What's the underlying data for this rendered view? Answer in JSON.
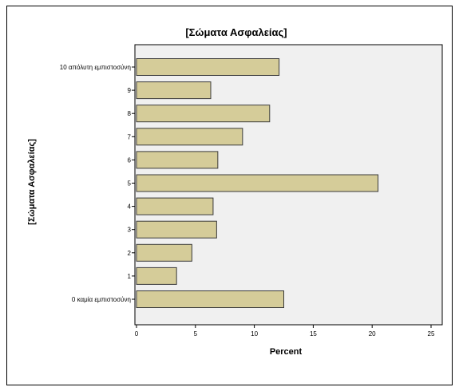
{
  "chart_data": {
    "type": "bar",
    "orientation": "horizontal",
    "title": "[Σώματα Ασφαλείας]",
    "xlabel": "Percent",
    "ylabel": "[Σώματα Ασφαλείας]",
    "categories": [
      "10 απόλυτη εμπιστοσύνη",
      "9",
      "8",
      "7",
      "6",
      "5",
      "4",
      "3",
      "2",
      "1",
      "0 καμία εμπιστοσύνη"
    ],
    "values": [
      12.1,
      6.3,
      11.3,
      9.0,
      6.9,
      20.5,
      6.5,
      6.8,
      4.7,
      3.4,
      12.5
    ],
    "xlim": [
      0,
      25
    ],
    "x_ticks": [
      0,
      5,
      10,
      15,
      20,
      25
    ],
    "grid": false,
    "colors": {
      "bar_fill": "#d5cc99",
      "bar_stroke": "#3a3a3a",
      "plot_background": "#f0f0f0",
      "axis": "#000000"
    }
  }
}
